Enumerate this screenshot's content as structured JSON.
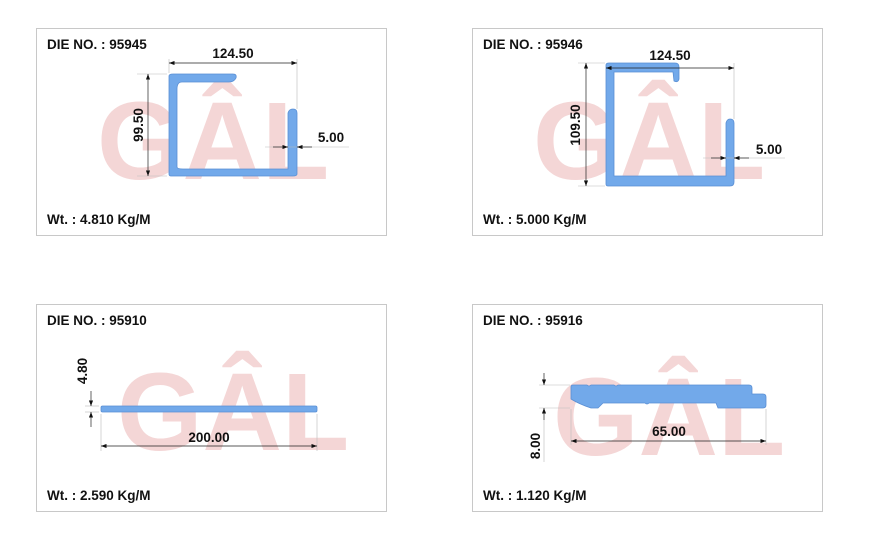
{
  "watermark": "GÂL",
  "colors": {
    "profile": "#72a9ea",
    "watermark": "#f4d6d6"
  },
  "profiles": [
    {
      "die_label": "DIE NO. : 95945",
      "weight_label": "Wt. : 4.810 Kg/M",
      "dims": [
        "124.50",
        "99.50",
        "5.00"
      ]
    },
    {
      "die_label": "DIE NO. : 95946",
      "weight_label": "Wt. : 5.000 Kg/M",
      "dims": [
        "124.50",
        "109.50",
        "5.00"
      ]
    },
    {
      "die_label": "DIE NO. : 95910",
      "weight_label": "Wt. : 2.590 Kg/M",
      "dims": [
        "200.00",
        "4.80"
      ]
    },
    {
      "die_label": "DIE NO. : 95916",
      "weight_label": "Wt. : 1.120 Kg/M",
      "dims": [
        "65.00",
        "8.00"
      ]
    }
  ]
}
